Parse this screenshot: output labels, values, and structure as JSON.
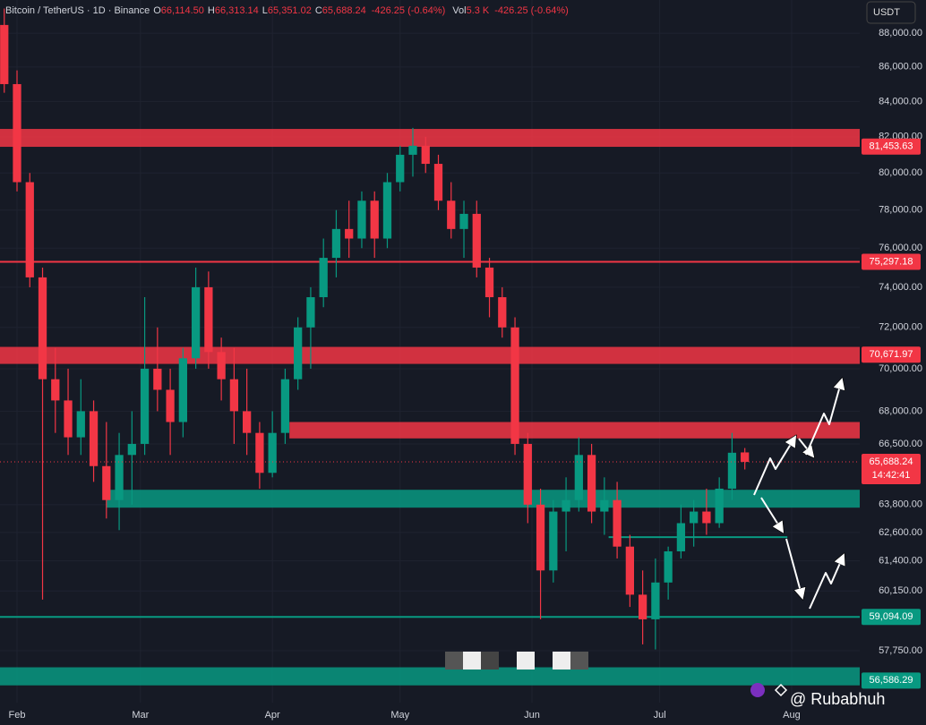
{
  "chart_data": {
    "type": "candlestick",
    "header": {
      "symbol": "Bitcoin / TetherUS · 1D · Binance",
      "fields": [
        {
          "label": "O",
          "value": "66,114.50"
        },
        {
          "label": "H",
          "value": "66,313.14"
        },
        {
          "label": "L",
          "value": "65,351.02"
        },
        {
          "label": "C",
          "value": "65,688.24"
        }
      ],
      "change": "-426.25 (-0.64%)",
      "vol_label": "Vol",
      "vol": "5.3 K",
      "vol_change": "-426.25 (-0.64%)"
    },
    "currency_button": "USDT",
    "watermark": "@ Rubabhuh",
    "log_scale": true,
    "up_color": "#089981",
    "down_color": "#f23645",
    "xlim": [
      -4,
      198
    ],
    "xticks": [
      {
        "value": 0,
        "label": "Feb"
      },
      {
        "value": 29,
        "label": "Mar"
      },
      {
        "value": 60,
        "label": "Apr"
      },
      {
        "value": 90,
        "label": "May"
      },
      {
        "value": 121,
        "label": "Jun"
      },
      {
        "value": 151,
        "label": "Jul"
      },
      {
        "value": 182,
        "label": "Aug"
      }
    ],
    "ylim": [
      55740,
      90020
    ],
    "yticks": [
      {
        "value": 88000,
        "label": "88,000.00"
      },
      {
        "value": 86000,
        "label": "86,000.00"
      },
      {
        "value": 84000,
        "label": "84,000.00"
      },
      {
        "value": 82000,
        "label": "82,000.00"
      },
      {
        "value": 80000,
        "label": "80,000.00"
      },
      {
        "value": 78000,
        "label": "78,000.00"
      },
      {
        "value": 76000,
        "label": "76,000.00"
      },
      {
        "value": 74000,
        "label": "74,000.00"
      },
      {
        "value": 72000,
        "label": "72,000.00"
      },
      {
        "value": 70000,
        "label": "70,000.00"
      },
      {
        "value": 68000,
        "label": "68,000.00"
      },
      {
        "value": 66500,
        "label": "66,500.00"
      },
      {
        "value": 63800,
        "label": "63,800.00"
      },
      {
        "value": 62600,
        "label": "62,600.00"
      },
      {
        "value": 61400,
        "label": "61,400.00"
      },
      {
        "value": 60150,
        "label": "60,150.00"
      },
      {
        "value": 57750,
        "label": "57,750.00"
      }
    ],
    "candles": {
      "x": [
        -3,
        0,
        3,
        6,
        9,
        12,
        15,
        18,
        21,
        24,
        27,
        30,
        33,
        36,
        39,
        42,
        45,
        48,
        51,
        54,
        57,
        60,
        63,
        66,
        69,
        72,
        75,
        78,
        81,
        84,
        87,
        90,
        93,
        96,
        99,
        102,
        105,
        108,
        111,
        114,
        117,
        120,
        123,
        126,
        129,
        132,
        135,
        138,
        141,
        144,
        147,
        150,
        153,
        156,
        159,
        162,
        165,
        168,
        171
      ],
      "open": [
        88500,
        85000,
        79500,
        74500,
        69500,
        68500,
        66800,
        68000,
        65500,
        64000,
        66000,
        66500,
        70000,
        69000,
        67500,
        70500,
        74000,
        70800,
        69500,
        68000,
        67000,
        65200,
        67000,
        69500,
        72000,
        73500,
        75500,
        77000,
        76500,
        78500,
        76500,
        79500,
        81000,
        81500,
        80500,
        78500,
        77000,
        77800,
        75000,
        73500,
        72000,
        66500,
        63800,
        61000,
        63500,
        64000,
        66000,
        63500,
        64000,
        62000,
        60000,
        59000,
        60500,
        61800,
        63000,
        63500,
        63000,
        64500,
        66114.5
      ],
      "high": [
        89500,
        85800,
        80000,
        75000,
        71000,
        70000,
        69500,
        68500,
        67500,
        67000,
        68000,
        73500,
        72000,
        70000,
        71000,
        75000,
        74800,
        71500,
        71000,
        70000,
        67500,
        68000,
        70000,
        72500,
        74000,
        76500,
        78000,
        78500,
        79000,
        79000,
        80000,
        81500,
        82500,
        82000,
        81000,
        79500,
        78500,
        78500,
        75500,
        74000,
        72500,
        67000,
        64500,
        64000,
        65000,
        66800,
        66500,
        65000,
        64800,
        62500,
        61000,
        61500,
        62000,
        63800,
        64000,
        64500,
        65000,
        67000,
        66313.14
      ],
      "low": [
        84500,
        79000,
        74000,
        59800,
        67000,
        66000,
        66000,
        64800,
        63200,
        62700,
        63800,
        66000,
        68000,
        66000,
        66800,
        70000,
        70000,
        68500,
        66500,
        66000,
        64500,
        65000,
        66500,
        69000,
        70000,
        73000,
        74500,
        75500,
        76000,
        75500,
        76000,
        79000,
        79800,
        80000,
        78000,
        76500,
        75500,
        74500,
        72500,
        71500,
        66000,
        63000,
        59000,
        60500,
        61800,
        63500,
        63000,
        62500,
        61500,
        59500,
        58000,
        57800,
        59800,
        61500,
        62000,
        62500,
        62800,
        64000,
        65351.02
      ],
      "close": [
        85000,
        79500,
        74500,
        69500,
        68500,
        66800,
        68000,
        65500,
        64000,
        66000,
        66500,
        70000,
        69000,
        67500,
        70500,
        74000,
        70800,
        69500,
        68000,
        67000,
        65200,
        67000,
        69500,
        72000,
        73500,
        75500,
        77000,
        76500,
        78500,
        76500,
        79500,
        81000,
        81500,
        80500,
        78500,
        77000,
        77800,
        75000,
        73500,
        72000,
        66500,
        63800,
        61000,
        63500,
        64000,
        66000,
        63500,
        64000,
        62000,
        60000,
        59000,
        60500,
        61800,
        63000,
        63500,
        63000,
        64500,
        66100,
        65688.24
      ]
    },
    "zones": [
      {
        "top": 82440,
        "bottom": 81440,
        "color": "#f23645"
      },
      {
        "top": 71050,
        "bottom": 70230,
        "color": "#f23645"
      },
      {
        "top": 67500,
        "bottom": 66750,
        "from": 64,
        "color": "#f23645"
      },
      {
        "top": 64450,
        "bottom": 63670,
        "from": 21,
        "color": "#089981"
      },
      {
        "top": 57100,
        "bottom": 56400,
        "color": "#089981"
      }
    ],
    "lines": [
      {
        "value": 75297.18,
        "color": "#f23645"
      },
      {
        "value": 59094.09,
        "color": "#089981"
      },
      {
        "value": 62400,
        "from": 139,
        "to": 181,
        "color": "#089981"
      }
    ],
    "price_tags": [
      {
        "value": 81453.63,
        "label": "81,453.63",
        "color": "#f23645"
      },
      {
        "value": 75297.18,
        "label": "75,297.18",
        "color": "#f23645"
      },
      {
        "value": 70671.97,
        "label": "70,671.97",
        "color": "#f23645"
      },
      {
        "value": 59094.09,
        "label": "59,094.09",
        "color": "#089981"
      },
      {
        "value": 56586.29,
        "label": "56,586.29",
        "color": "#089981"
      }
    ],
    "last_price": {
      "value": 65688.24,
      "label": "65,688.24",
      "countdown": "14:42:41",
      "color": "#f23645"
    }
  }
}
